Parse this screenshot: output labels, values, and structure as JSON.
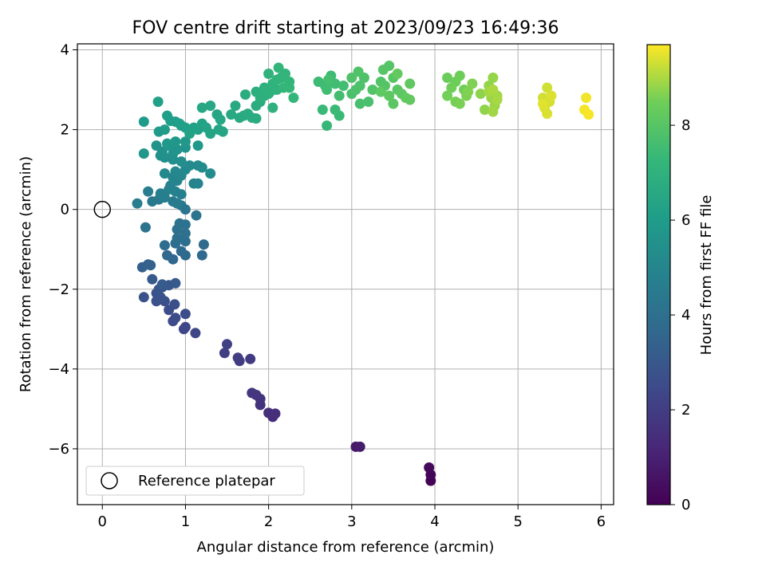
{
  "chart_data": {
    "type": "scatter",
    "title": "FOV centre drift starting at 2023/09/23 16:49:36",
    "xlabel": "Angular distance from reference (arcmin)",
    "ylabel": "Rotation from reference (arcmin)",
    "xlim": [
      -0.3,
      6.15
    ],
    "ylim": [
      -7.4,
      4.15
    ],
    "xticks": [
      0,
      1,
      2,
      3,
      4,
      5,
      6
    ],
    "yticks": [
      -6,
      -4,
      -2,
      0,
      2,
      4
    ],
    "grid": true,
    "legend": {
      "placement": "lower-left",
      "entries": [
        "Reference platepar"
      ]
    },
    "reference_point": {
      "x": 0,
      "y": 0,
      "label": "Reference platepar"
    },
    "colorbar": {
      "label": "Hours from first FF file",
      "colormap": "viridis",
      "range": [
        0,
        9.7
      ],
      "ticks": [
        0,
        2,
        4,
        6,
        8
      ]
    },
    "series": [
      {
        "colored_by": "Hours from first FF file",
        "points": [
          [
            3.95,
            -6.8,
            0.05
          ],
          [
            3.95,
            -6.65,
            0.15
          ],
          [
            3.93,
            -6.47,
            0.25
          ],
          [
            3.05,
            -5.95,
            0.7
          ],
          [
            3.1,
            -5.95,
            0.8
          ],
          [
            2.05,
            -5.2,
            1.4
          ],
          [
            2.08,
            -5.12,
            1.45
          ],
          [
            2.0,
            -5.1,
            1.5
          ],
          [
            1.9,
            -4.9,
            1.6
          ],
          [
            1.9,
            -4.75,
            1.65
          ],
          [
            1.85,
            -4.65,
            1.7
          ],
          [
            1.8,
            -4.6,
            1.75
          ],
          [
            1.78,
            -3.75,
            1.9
          ],
          [
            1.65,
            -3.8,
            1.95
          ],
          [
            1.63,
            -3.72,
            2.0
          ],
          [
            1.47,
            -3.6,
            2.05
          ],
          [
            1.5,
            -3.38,
            2.1
          ],
          [
            1.12,
            -3.1,
            2.3
          ],
          [
            0.98,
            -3.0,
            2.35
          ],
          [
            1.0,
            -2.95,
            2.4
          ],
          [
            0.85,
            -2.8,
            2.45
          ],
          [
            0.88,
            -2.72,
            2.5
          ],
          [
            1.0,
            -2.62,
            2.55
          ],
          [
            0.8,
            -2.52,
            2.6
          ],
          [
            0.87,
            -2.38,
            2.65
          ],
          [
            0.75,
            -2.3,
            2.7
          ],
          [
            0.65,
            -2.3,
            2.75
          ],
          [
            0.7,
            -2.2,
            2.8
          ],
          [
            0.5,
            -2.2,
            2.82
          ],
          [
            0.65,
            -2.1,
            2.85
          ],
          [
            0.68,
            -2.0,
            2.9
          ],
          [
            0.72,
            -1.95,
            2.95
          ],
          [
            0.8,
            -1.9,
            3.0
          ],
          [
            0.88,
            -1.85,
            3.05
          ],
          [
            0.6,
            -1.75,
            3.1
          ],
          [
            0.72,
            -1.88,
            3.12
          ],
          [
            0.48,
            -1.45,
            3.3
          ],
          [
            0.58,
            -1.4,
            3.35
          ],
          [
            0.55,
            -1.38,
            3.4
          ],
          [
            0.85,
            -1.25,
            3.6
          ],
          [
            0.78,
            -1.15,
            3.65
          ],
          [
            1.0,
            -1.15,
            3.7
          ],
          [
            1.2,
            -1.15,
            3.72
          ],
          [
            0.95,
            -1.05,
            3.75
          ],
          [
            1.22,
            -0.88,
            3.8
          ],
          [
            0.75,
            -0.9,
            3.85
          ],
          [
            0.88,
            -0.85,
            3.9
          ],
          [
            1.0,
            -0.8,
            3.92
          ],
          [
            0.9,
            -0.72,
            3.95
          ],
          [
            1.0,
            -0.6,
            4.0
          ],
          [
            0.9,
            -0.5,
            4.05
          ],
          [
            0.93,
            -0.35,
            4.1
          ],
          [
            1.0,
            -0.38,
            4.12
          ],
          [
            0.52,
            -0.45,
            4.15
          ],
          [
            1.13,
            -0.15,
            4.2
          ],
          [
            1.0,
            0.0,
            4.25
          ],
          [
            0.95,
            0.1,
            4.3
          ],
          [
            0.6,
            0.2,
            4.4
          ],
          [
            0.68,
            0.25,
            4.45
          ],
          [
            0.85,
            0.2,
            4.5
          ],
          [
            0.9,
            0.15,
            4.55
          ],
          [
            0.42,
            0.15,
            4.6
          ],
          [
            0.55,
            0.45,
            4.65
          ],
          [
            0.7,
            0.4,
            4.7
          ],
          [
            0.75,
            0.3,
            4.72
          ],
          [
            0.95,
            0.38,
            4.75
          ],
          [
            0.88,
            0.45,
            4.8
          ],
          [
            0.8,
            0.5,
            4.82
          ],
          [
            0.82,
            0.6,
            4.85
          ],
          [
            1.1,
            0.65,
            4.9
          ],
          [
            1.15,
            0.65,
            4.92
          ],
          [
            0.9,
            0.72,
            4.95
          ],
          [
            0.85,
            0.8,
            5.0
          ],
          [
            0.95,
            0.85,
            5.05
          ],
          [
            0.75,
            0.9,
            5.1
          ],
          [
            0.88,
            0.95,
            5.12
          ],
          [
            1.0,
            1.0,
            5.15
          ],
          [
            1.05,
            1.1,
            5.2
          ],
          [
            1.2,
            1.05,
            5.22
          ],
          [
            1.15,
            1.1,
            5.25
          ],
          [
            1.3,
            0.9,
            5.3
          ],
          [
            0.95,
            1.2,
            5.35
          ],
          [
            0.85,
            1.25,
            5.4
          ],
          [
            0.75,
            1.3,
            5.45
          ],
          [
            0.7,
            1.35,
            5.5
          ],
          [
            0.72,
            1.45,
            5.52
          ],
          [
            0.85,
            1.4,
            5.55
          ],
          [
            0.65,
            1.6,
            5.6
          ],
          [
            0.9,
            1.5,
            5.62
          ],
          [
            1.0,
            1.55,
            5.65
          ],
          [
            0.8,
            1.6,
            5.7
          ],
          [
            0.5,
            1.4,
            5.72
          ],
          [
            0.88,
            1.7,
            5.75
          ],
          [
            1.0,
            1.7,
            5.8
          ],
          [
            1.15,
            1.6,
            5.82
          ],
          [
            0.78,
            1.65,
            5.85
          ],
          [
            0.68,
            1.95,
            5.9
          ],
          [
            0.5,
            2.2,
            5.95
          ],
          [
            0.75,
            2.0,
            5.97
          ],
          [
            0.88,
            2.2,
            6.0
          ],
          [
            0.95,
            2.1,
            6.02
          ],
          [
            0.78,
            2.35,
            6.05
          ],
          [
            0.82,
            2.22,
            6.08
          ],
          [
            0.93,
            2.15,
            6.1
          ],
          [
            0.67,
            2.7,
            6.15
          ],
          [
            1.0,
            2.05,
            6.2
          ],
          [
            1.1,
            2.05,
            6.22
          ],
          [
            1.15,
            2.0,
            6.25
          ],
          [
            1.05,
            1.9,
            6.28
          ],
          [
            1.2,
            2.15,
            6.3
          ],
          [
            1.25,
            2.05,
            6.32
          ],
          [
            1.3,
            1.9,
            6.35
          ],
          [
            1.4,
            2.0,
            6.38
          ],
          [
            1.45,
            1.95,
            6.4
          ],
          [
            1.38,
            2.38,
            6.45
          ],
          [
            1.42,
            2.25,
            6.48
          ],
          [
            1.3,
            2.6,
            6.5
          ],
          [
            1.2,
            2.55,
            6.52
          ],
          [
            1.55,
            2.38,
            6.55
          ],
          [
            1.6,
            2.6,
            6.6
          ],
          [
            1.65,
            2.3,
            6.62
          ],
          [
            1.7,
            2.35,
            6.65
          ],
          [
            1.75,
            2.4,
            6.68
          ],
          [
            1.8,
            2.3,
            6.7
          ],
          [
            1.85,
            2.28,
            6.72
          ],
          [
            1.72,
            2.88,
            6.75
          ],
          [
            1.85,
            2.6,
            6.78
          ],
          [
            1.9,
            2.7,
            6.8
          ],
          [
            1.95,
            2.85,
            6.82
          ],
          [
            1.85,
            2.95,
            6.85
          ],
          [
            1.9,
            2.8,
            6.88
          ],
          [
            2.0,
            2.9,
            6.9
          ],
          [
            2.05,
            2.55,
            6.92
          ],
          [
            1.95,
            3.05,
            6.95
          ],
          [
            2.02,
            2.95,
            6.97
          ],
          [
            2.1,
            3.0,
            7.0
          ],
          [
            2.05,
            3.15,
            7.02
          ],
          [
            2.0,
            3.4,
            7.05
          ],
          [
            2.1,
            3.25,
            7.08
          ],
          [
            2.15,
            3.3,
            7.1
          ],
          [
            2.2,
            3.4,
            7.12
          ],
          [
            2.12,
            3.55,
            7.15
          ],
          [
            2.25,
            3.2,
            7.18
          ],
          [
            2.18,
            3.05,
            7.2
          ],
          [
            2.3,
            2.8,
            7.22
          ],
          [
            2.25,
            3.05,
            7.25
          ],
          [
            2.7,
            2.1,
            7.3
          ],
          [
            2.65,
            2.5,
            7.35
          ],
          [
            2.85,
            2.35,
            7.38
          ],
          [
            2.8,
            2.5,
            7.4
          ],
          [
            2.6,
            3.2,
            7.45
          ],
          [
            2.68,
            3.1,
            7.48
          ],
          [
            2.75,
            3.35,
            7.5
          ],
          [
            2.7,
            3.0,
            7.52
          ],
          [
            2.8,
            3.15,
            7.55
          ],
          [
            2.9,
            3.1,
            7.58
          ],
          [
            2.85,
            2.85,
            7.6
          ],
          [
            2.72,
            3.25,
            7.62
          ],
          [
            3.1,
            2.65,
            7.7
          ],
          [
            3.2,
            2.7,
            7.72
          ],
          [
            3.0,
            2.9,
            7.75
          ],
          [
            3.05,
            3.0,
            7.78
          ],
          [
            3.1,
            3.1,
            7.8
          ],
          [
            3.15,
            3.3,
            7.82
          ],
          [
            3.08,
            3.45,
            7.85
          ],
          [
            3.0,
            3.3,
            7.88
          ],
          [
            3.25,
            3.0,
            7.9
          ],
          [
            3.35,
            3.2,
            7.92
          ],
          [
            3.4,
            3.1,
            7.95
          ],
          [
            3.45,
            3.6,
            7.98
          ],
          [
            3.38,
            3.5,
            8.0
          ],
          [
            3.5,
            3.3,
            8.02
          ],
          [
            3.55,
            3.0,
            8.05
          ],
          [
            3.5,
            2.65,
            8.08
          ],
          [
            3.6,
            2.9,
            8.1
          ],
          [
            3.45,
            2.85,
            8.12
          ],
          [
            3.35,
            2.95,
            8.15
          ],
          [
            3.7,
            3.15,
            8.18
          ],
          [
            3.65,
            2.8,
            8.2
          ],
          [
            3.7,
            2.75,
            8.22
          ],
          [
            3.55,
            3.4,
            8.25
          ],
          [
            4.15,
            3.3,
            8.4
          ],
          [
            4.25,
            3.2,
            8.42
          ],
          [
            4.3,
            3.35,
            8.45
          ],
          [
            4.2,
            3.05,
            8.48
          ],
          [
            4.35,
            3.0,
            8.5
          ],
          [
            4.15,
            2.85,
            8.52
          ],
          [
            4.25,
            2.7,
            8.55
          ],
          [
            4.3,
            2.65,
            8.58
          ],
          [
            4.38,
            2.85,
            8.6
          ],
          [
            4.45,
            3.15,
            8.62
          ],
          [
            4.4,
            2.95,
            8.65
          ],
          [
            4.55,
            2.9,
            8.75
          ],
          [
            4.6,
            2.5,
            8.78
          ],
          [
            4.65,
            3.1,
            8.8
          ],
          [
            4.7,
            3.3,
            8.82
          ],
          [
            4.68,
            2.8,
            8.85
          ],
          [
            4.72,
            2.6,
            8.88
          ],
          [
            4.75,
            2.85,
            8.9
          ],
          [
            4.7,
            2.45,
            8.92
          ],
          [
            4.65,
            2.95,
            8.95
          ],
          [
            4.75,
            2.75,
            8.98
          ],
          [
            4.7,
            3.0,
            9.0
          ],
          [
            5.35,
            3.05,
            9.3
          ],
          [
            5.3,
            2.8,
            9.32
          ],
          [
            5.38,
            2.7,
            9.35
          ],
          [
            5.32,
            2.55,
            9.38
          ],
          [
            5.35,
            2.4,
            9.4
          ],
          [
            5.4,
            2.85,
            9.42
          ],
          [
            5.3,
            2.65,
            9.45
          ],
          [
            5.82,
            2.8,
            9.6
          ],
          [
            5.8,
            2.5,
            9.62
          ],
          [
            5.85,
            2.38,
            9.65
          ]
        ]
      }
    ]
  }
}
